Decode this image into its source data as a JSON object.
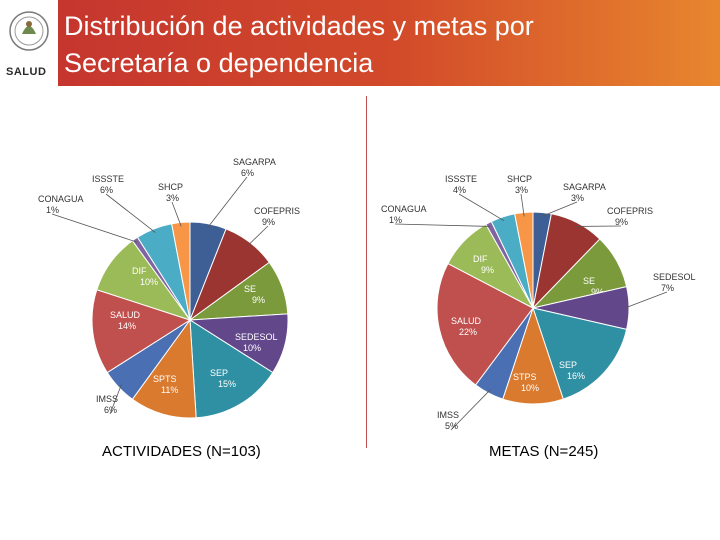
{
  "header": {
    "title_line1": "Distribución de actividades y metas por",
    "title_line2": "Secretaría o dependencia",
    "logo_text": "SALUD"
  },
  "colors": {
    "header_start": "#c3322f",
    "header_end": "#e8862e",
    "divider": "#c0504d"
  },
  "chart_data": [
    {
      "type": "pie",
      "title": "ACTIVIDADES (N=103)",
      "slices": [
        {
          "name": "SAGARPA",
          "value": 6,
          "label": "6%",
          "color": "#3e5f95"
        },
        {
          "name": "COFEPRIS",
          "value": 9,
          "label": "9%",
          "color": "#9b3532"
        },
        {
          "name": "SE",
          "value": 9,
          "label": "9%",
          "color": "#7a9a3c"
        },
        {
          "name": "SEDESOL",
          "value": 10,
          "label": "10%",
          "color": "#62478b"
        },
        {
          "name": "SEP",
          "value": 15,
          "label": "15%",
          "color": "#2f8fa3"
        },
        {
          "name": "SPTS",
          "value": 11,
          "label": "11%",
          "color": "#d97a2e"
        },
        {
          "name": "IMSS",
          "value": 6,
          "label": "6%",
          "color": "#4a6fb3"
        },
        {
          "name": "SALUD",
          "value": 14,
          "label": "14%",
          "color": "#c0504d"
        },
        {
          "name": "DIF",
          "value": 10,
          "label": "10%",
          "color": "#9bbb59"
        },
        {
          "name": "CONAGUA",
          "value": 1,
          "label": "1%",
          "color": "#8064a2"
        },
        {
          "name": "ISSSTE",
          "value": 6,
          "label": "6%",
          "color": "#4bacc6"
        },
        {
          "name": "SHCP",
          "value": 3,
          "label": "3%",
          "color": "#f79646"
        }
      ]
    },
    {
      "type": "pie",
      "title": "METAS (N=245)",
      "slices": [
        {
          "name": "SAGARPA",
          "value": 3,
          "label": "3%",
          "color": "#3e5f95"
        },
        {
          "name": "COFEPRIS",
          "value": 9,
          "label": "9%",
          "color": "#9b3532"
        },
        {
          "name": "SE",
          "value": 9,
          "label": "9%",
          "color": "#7a9a3c"
        },
        {
          "name": "SEDESOL",
          "value": 7,
          "label": "7%",
          "color": "#62478b"
        },
        {
          "name": "SEP",
          "value": 16,
          "label": "16%",
          "color": "#2f8fa3"
        },
        {
          "name": "STPS",
          "value": 10,
          "label": "10%",
          "color": "#d97a2e"
        },
        {
          "name": "IMSS",
          "value": 5,
          "label": "5%",
          "color": "#4a6fb3"
        },
        {
          "name": "SALUD",
          "value": 22,
          "label": "22%",
          "color": "#c0504d"
        },
        {
          "name": "DIF",
          "value": 9,
          "label": "9%",
          "color": "#9bbb59"
        },
        {
          "name": "CONAGUA",
          "value": 1,
          "label": "1%",
          "color": "#8064a2"
        },
        {
          "name": "ISSSTE",
          "value": 4,
          "label": "4%",
          "color": "#4bacc6"
        },
        {
          "name": "SHCP",
          "value": 3,
          "label": "3%",
          "color": "#f79646"
        }
      ]
    }
  ]
}
